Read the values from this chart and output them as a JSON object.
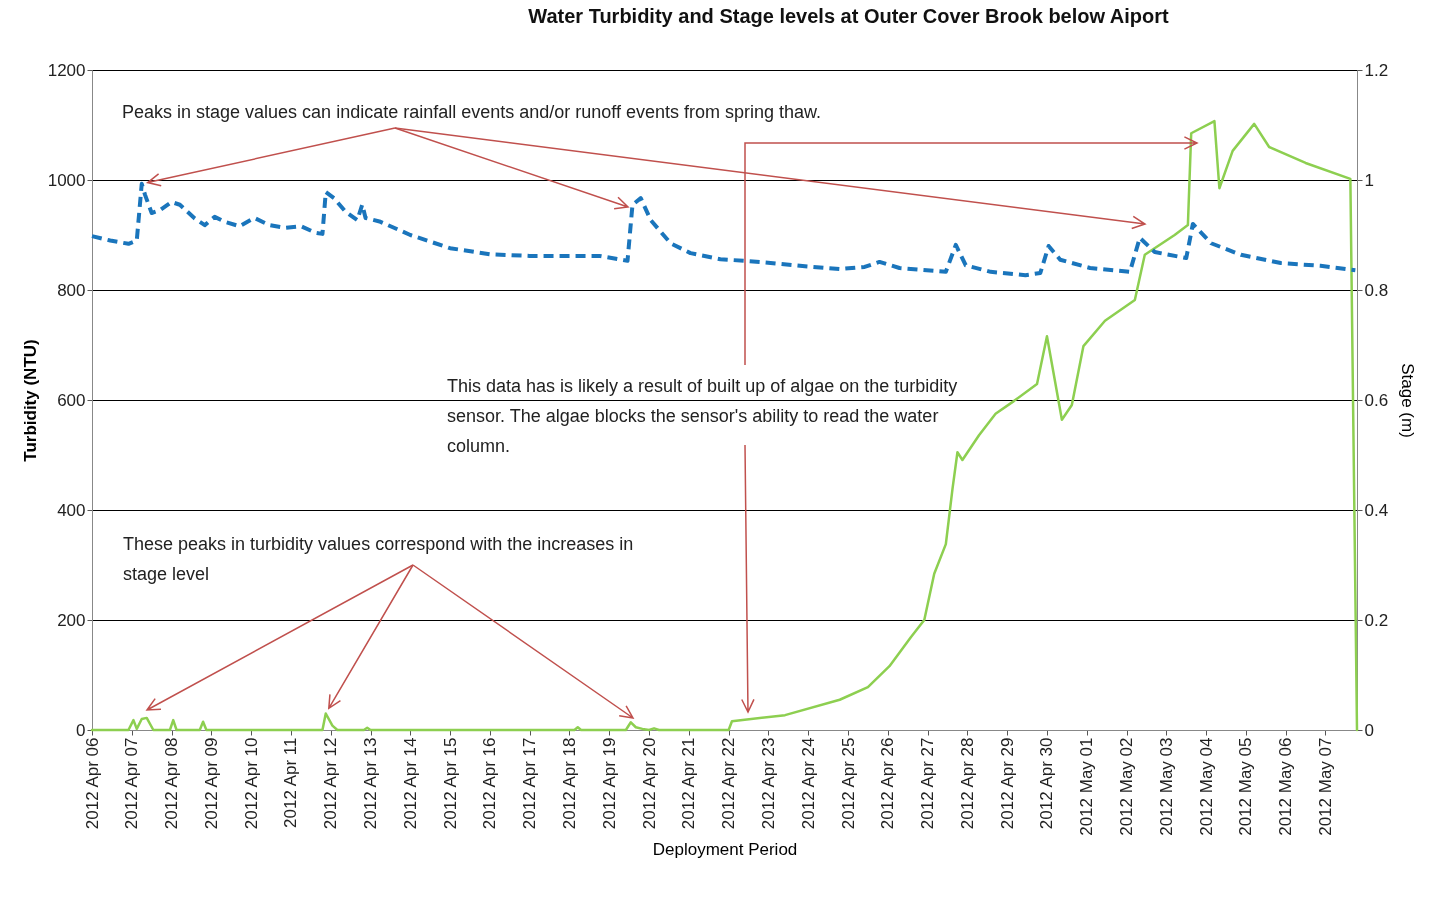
{
  "chart_data": {
    "type": "line",
    "title": "Water Turbidity and Stage levels at Outer Cover Brook below Aiport",
    "xlabel": "Deployment  Period",
    "ylabel": "Turbidity (NTU)",
    "y2label": "Stage  (m)",
    "xlim": [
      "2012-04-06",
      "2012-05-07T19:00"
    ],
    "xticks": [
      {
        "value": "2012-04-06",
        "label": "2012 Apr 06"
      },
      {
        "value": "2012-04-07",
        "label": "2012 Apr 07"
      },
      {
        "value": "2012-04-08",
        "label": "2012 Apr 08"
      },
      {
        "value": "2012-04-09",
        "label": "2012 Apr 09"
      },
      {
        "value": "2012-04-10",
        "label": "2012 Apr 10"
      },
      {
        "value": "2012-04-11",
        "label": "2012 Apr 11"
      },
      {
        "value": "2012-04-12",
        "label": "2012 Apr 12"
      },
      {
        "value": "2012-04-13",
        "label": "2012 Apr 13"
      },
      {
        "value": "2012-04-14",
        "label": "2012 Apr 14"
      },
      {
        "value": "2012-04-15",
        "label": "2012 Apr 15"
      },
      {
        "value": "2012-04-16",
        "label": "2012 Apr 16"
      },
      {
        "value": "2012-04-17",
        "label": "2012 Apr 17"
      },
      {
        "value": "2012-04-18",
        "label": "2012 Apr 18"
      },
      {
        "value": "2012-04-19",
        "label": "2012 Apr 19"
      },
      {
        "value": "2012-04-20",
        "label": "2012 Apr 20"
      },
      {
        "value": "2012-04-21",
        "label": "2012 Apr 21"
      },
      {
        "value": "2012-04-22",
        "label": "2012 Apr 22"
      },
      {
        "value": "2012-04-23",
        "label": "2012 Apr 23"
      },
      {
        "value": "2012-04-24",
        "label": "2012 Apr 24"
      },
      {
        "value": "2012-04-25",
        "label": "2012 Apr 25"
      },
      {
        "value": "2012-04-26",
        "label": "2012 Apr 26"
      },
      {
        "value": "2012-04-27",
        "label": "2012 Apr 27"
      },
      {
        "value": "2012-04-28",
        "label": "2012 Apr 28"
      },
      {
        "value": "2012-04-29",
        "label": "2012 Apr 29"
      },
      {
        "value": "2012-04-30",
        "label": "2012 Apr 30"
      },
      {
        "value": "2012-05-01",
        "label": "2012 May 01"
      },
      {
        "value": "2012-05-02",
        "label": "2012 May 02"
      },
      {
        "value": "2012-05-03",
        "label": "2012 May 03"
      },
      {
        "value": "2012-05-04",
        "label": "2012 May 04"
      },
      {
        "value": "2012-05-05",
        "label": "2012 May 05"
      },
      {
        "value": "2012-05-06",
        "label": "2012 May 06"
      },
      {
        "value": "2012-05-07",
        "label": "2012 May 07"
      }
    ],
    "ylim": [
      0,
      1200
    ],
    "yticks": [
      0,
      200,
      400,
      600,
      800,
      1000,
      1200
    ],
    "y2lim": [
      0,
      1.2
    ],
    "y2ticks": [
      0,
      0.2,
      0.4,
      0.6,
      0.8,
      1,
      1.2
    ],
    "grid": "y",
    "series": [
      {
        "color": "#8dcf50",
        "line_style": "solid",
        "x": [
          "2012-04-06T00:00",
          "2012-04-06T22:00",
          "2012-04-07T01:00",
          "2012-04-07T03:00",
          "2012-04-07T06:00",
          "2012-04-07T09:00",
          "2012-04-07T13:00",
          "2012-04-07T23:00",
          "2012-04-08T01:00",
          "2012-04-08T03:00",
          "2012-04-08T17:00",
          "2012-04-08T19:00",
          "2012-04-08T21:00",
          "2012-04-11T19:00",
          "2012-04-11T21:00",
          "2012-04-12T01:00",
          "2012-04-12T04:00",
          "2012-04-12T20:00",
          "2012-04-12T22:00",
          "2012-04-13T00:00",
          "2012-04-18T03:00",
          "2012-04-18T05:00",
          "2012-04-18T07:00",
          "2012-04-19T10:00",
          "2012-04-19T13:00",
          "2012-04-19T16:00",
          "2012-04-19T20:00",
          "2012-04-20T00:00",
          "2012-04-20T03:00",
          "2012-04-20T06:00",
          "2012-04-22T00:00",
          "2012-04-22T02:00",
          "2012-04-23T10:00",
          "2012-04-24T19:00",
          "2012-04-25T12:00",
          "2012-04-26T01:00",
          "2012-04-26T14:00",
          "2012-04-26T22:00",
          "2012-04-27T04:00",
          "2012-04-27T11:00",
          "2012-04-27T15:00",
          "2012-04-27T18:00",
          "2012-04-27T21:00",
          "2012-04-28T07:00",
          "2012-04-28T17:00",
          "2012-04-29T04:00",
          "2012-04-29T18:00",
          "2012-04-30T00:00",
          "2012-04-30T09:00",
          "2012-04-30T15:00",
          "2012-04-30T22:00",
          "2012-05-01T11:00",
          "2012-05-02T05:00",
          "2012-05-02T11:00",
          "2012-05-03T05:00",
          "2012-05-03T13:00",
          "2012-05-03T15:00",
          "2012-05-04T05:00",
          "2012-05-04T08:00",
          "2012-05-04T16:00",
          "2012-05-05T05:00",
          "2012-05-05T14:00",
          "2012-05-06T12:00",
          "2012-05-07T15:00",
          "2012-05-07T19:00"
        ],
        "values": [
          0,
          0,
          18,
          2,
          20,
          22,
          0,
          0,
          18,
          0,
          0,
          15,
          0,
          0,
          30,
          8,
          0,
          0,
          4,
          0,
          0,
          5,
          0,
          0,
          14,
          5,
          2,
          0,
          3,
          0,
          0,
          16,
          27,
          55,
          78,
          116,
          169,
          200,
          284,
          338,
          438,
          505,
          491,
          536,
          575,
          598,
          629,
          716,
          564,
          591,
          698,
          744,
          782,
          864,
          900,
          918,
          1085,
          1107,
          985,
          1053,
          1102,
          1060,
          1031,
          1002,
          0
        ]
      },
      {
        "axis": "y2",
        "color": "#1a75bc",
        "line_style": "dashed",
        "x": [
          "2012-04-06T00:00",
          "2012-04-06T11:00",
          "2012-04-06T22:00",
          "2012-04-07T03:00",
          "2012-04-07T06:00",
          "2012-04-07T08:00",
          "2012-04-07T12:00",
          "2012-04-07T17:00",
          "2012-04-08T00:00",
          "2012-04-08T05:00",
          "2012-04-08T14:00",
          "2012-04-08T20:00",
          "2012-04-09T02:00",
          "2012-04-09T08:00",
          "2012-04-09T17:00",
          "2012-04-10T02:00",
          "2012-04-10T11:00",
          "2012-04-10T20:00",
          "2012-04-11T06:00",
          "2012-04-11T15:00",
          "2012-04-11T19:00",
          "2012-04-11T21:00",
          "2012-04-12T02:00",
          "2012-04-12T09:00",
          "2012-04-12T16:00",
          "2012-04-12T19:00",
          "2012-04-12T21:00",
          "2012-04-13T06:00",
          "2012-04-14T00:00",
          "2012-04-15T00:00",
          "2012-04-16T00:00",
          "2012-04-17T00:00",
          "2012-04-18T00:00",
          "2012-04-18T18:00",
          "2012-04-19T11:00",
          "2012-04-19T14:00",
          "2012-04-19T19:00",
          "2012-04-20T01:00",
          "2012-04-20T13:00",
          "2012-04-21T01:00",
          "2012-04-21T19:00",
          "2012-04-22T19:00",
          "2012-04-23T19:00",
          "2012-04-24T19:00",
          "2012-04-25T10:00",
          "2012-04-25T19:00",
          "2012-04-26T07:00",
          "2012-04-27T11:00",
          "2012-04-27T17:00",
          "2012-04-27T23:00",
          "2012-04-28T14:00",
          "2012-04-29T11:00",
          "2012-04-29T20:00",
          "2012-04-30T01:00",
          "2012-04-30T08:00",
          "2012-05-01T02:00",
          "2012-05-02T02:00",
          "2012-05-02T08:00",
          "2012-05-02T17:00",
          "2012-05-03T12:00",
          "2012-05-03T16:00",
          "2012-05-04T03:00",
          "2012-05-04T21:00",
          "2012-05-05T21:00",
          "2012-05-06T21:00",
          "2012-05-07T18:00"
        ],
        "values": [
          0.898,
          0.89,
          0.884,
          0.89,
          0.993,
          0.973,
          0.94,
          0.945,
          0.96,
          0.955,
          0.93,
          0.918,
          0.933,
          0.924,
          0.916,
          0.931,
          0.918,
          0.913,
          0.916,
          0.904,
          0.902,
          0.978,
          0.967,
          0.942,
          0.927,
          0.955,
          0.931,
          0.924,
          0.9,
          0.876,
          0.865,
          0.862,
          0.862,
          0.862,
          0.853,
          0.955,
          0.967,
          0.927,
          0.885,
          0.867,
          0.856,
          0.851,
          0.844,
          0.838,
          0.842,
          0.851,
          0.84,
          0.833,
          0.882,
          0.845,
          0.833,
          0.827,
          0.831,
          0.88,
          0.855,
          0.84,
          0.833,
          0.895,
          0.869,
          0.858,
          0.92,
          0.885,
          0.864,
          0.849,
          0.844,
          0.836
        ]
      }
    ],
    "annotations": [
      {
        "text": "Peaks in stage values can indicate rainfall events and/or runoff events from spring thaw.",
        "x": "2012-04-07T06:00",
        "y": 993
      },
      "This data has is likely a result of built up of algae on the turbidity sensor. The algae blocks the sensor's ability to read the water column.",
      {
        "text": "These peaks in turbidity values correspond with the increases in stage level",
        "x": "2012-04-11T21:00",
        "y": 30
      }
    ]
  }
}
